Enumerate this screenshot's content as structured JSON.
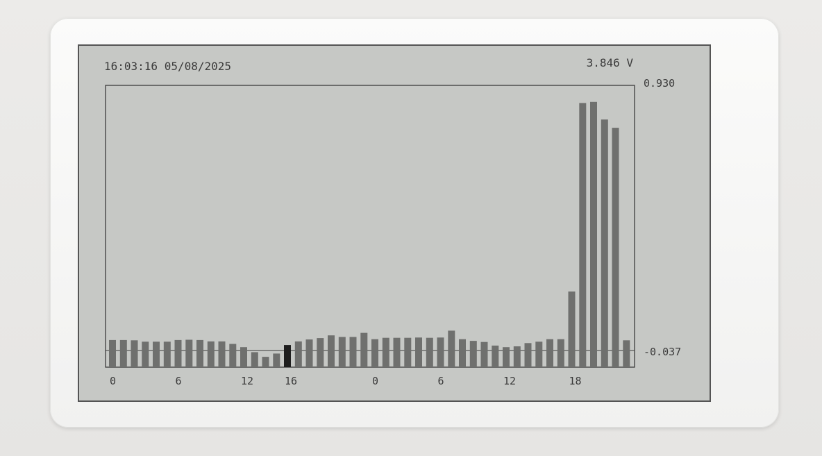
{
  "status": {
    "datetime": "16:03:16 05/08/2025",
    "voltage": "3.846 V"
  },
  "axis": {
    "y_max_label": "0.930",
    "y_min_label": "-0.037",
    "x_ticks": [
      {
        "label": "0",
        "index": 0
      },
      {
        "label": "6",
        "index": 6
      },
      {
        "label": "12",
        "index": 12
      },
      {
        "label": "16",
        "index": 16
      },
      {
        "label": "0",
        "index": 24
      },
      {
        "label": "6",
        "index": 30
      },
      {
        "label": "12",
        "index": 36
      },
      {
        "label": "18",
        "index": 42
      }
    ]
  },
  "colors": {
    "bar": "#6f706e",
    "current_bar": "#1e1e1e",
    "screen": "#c6c8c5",
    "frame": "#3c3c3c"
  },
  "chart_data": {
    "type": "bar",
    "x": [
      0,
      1,
      2,
      3,
      4,
      5,
      6,
      7,
      8,
      9,
      10,
      11,
      12,
      13,
      14,
      15,
      16,
      17,
      18,
      19,
      20,
      21,
      22,
      23,
      24,
      25,
      26,
      27,
      28,
      29,
      30,
      31,
      32,
      33,
      34,
      35,
      36,
      37,
      38,
      39,
      40,
      41,
      42,
      43,
      44,
      45,
      46,
      47
    ],
    "values": [
      0.001,
      0.001,
      0.0,
      -0.005,
      -0.005,
      -0.005,
      0.001,
      0.002,
      0.001,
      -0.004,
      -0.004,
      -0.013,
      -0.025,
      -0.043,
      -0.06,
      -0.048,
      -0.017,
      -0.004,
      0.003,
      0.008,
      0.018,
      0.012,
      0.012,
      0.027,
      0.004,
      0.009,
      0.009,
      0.009,
      0.01,
      0.009,
      0.01,
      0.035,
      0.004,
      -0.002,
      -0.006,
      -0.019,
      -0.025,
      -0.022,
      -0.01,
      -0.005,
      0.004,
      0.004,
      0.177,
      0.861,
      0.865,
      0.801,
      0.771,
      0.0
    ],
    "current_index": 16,
    "ylim": [
      -0.06,
      0.93
    ],
    "reference_line": -0.037,
    "xlabel": "",
    "ylabel": ""
  }
}
